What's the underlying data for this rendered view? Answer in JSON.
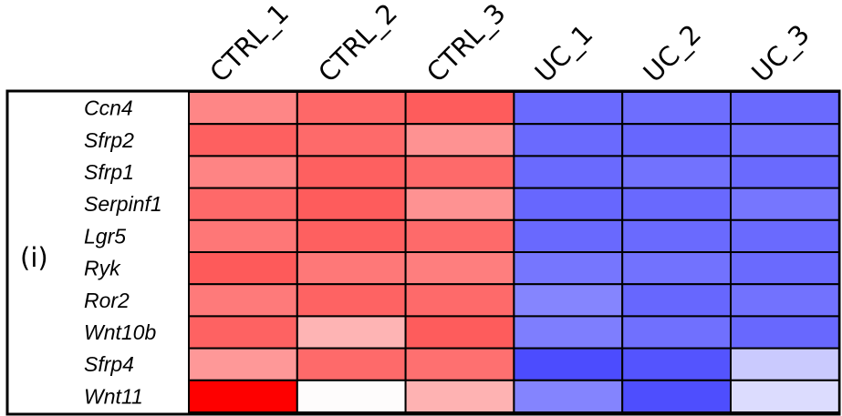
{
  "panel_label": "(i)",
  "chart_data": {
    "type": "heatmap",
    "columns": [
      "CTRL_1",
      "CTRL_2",
      "CTRL_3",
      "UC_1",
      "UC_2",
      "UC_3"
    ],
    "rows": [
      "Ccn4",
      "Sfrp2",
      "Sfrp1",
      "Serpinf1",
      "Lgr5",
      "Ryk",
      "Ror2",
      "Wnt10b",
      "Sfrp4",
      "Wnt11"
    ],
    "cells": [
      [
        "#fe8686",
        "#fe6868",
        "#fe5c5c",
        "#6a6afe",
        "#6e6efe",
        "#6a6afe"
      ],
      [
        "#fe6060",
        "#fe6a6a",
        "#fe9292",
        "#6a6afe",
        "#6767fe",
        "#7070fe"
      ],
      [
        "#fe8484",
        "#fe6060",
        "#fe6a6a",
        "#6a6afe",
        "#7272fe",
        "#6a6afe"
      ],
      [
        "#fe6969",
        "#fe5c5c",
        "#fe9292",
        "#6767fe",
        "#6969fe",
        "#7676fe"
      ],
      [
        "#fe7777",
        "#fe6060",
        "#fe6a6a",
        "#6969fe",
        "#6a6afe",
        "#6a6afe"
      ],
      [
        "#fe5a5a",
        "#fe7878",
        "#fe7e7e",
        "#7676fe",
        "#7272fe",
        "#6a6afe"
      ],
      [
        "#fe7a7a",
        "#fe6363",
        "#fe6a6a",
        "#8585fe",
        "#6767fe",
        "#7272fe"
      ],
      [
        "#fe6262",
        "#feb4b4",
        "#fe5c5c",
        "#7e7efe",
        "#7070fe",
        "#6868fe"
      ],
      [
        "#fe9898",
        "#fe6a6a",
        "#fe7070",
        "#4c4cfe",
        "#5454fe",
        "#cacafe"
      ],
      [
        "#fe0000",
        "#fefcfc",
        "#feb2b2",
        "#8484fe",
        "#4e4efe",
        "#dcdcfe"
      ]
    ]
  }
}
